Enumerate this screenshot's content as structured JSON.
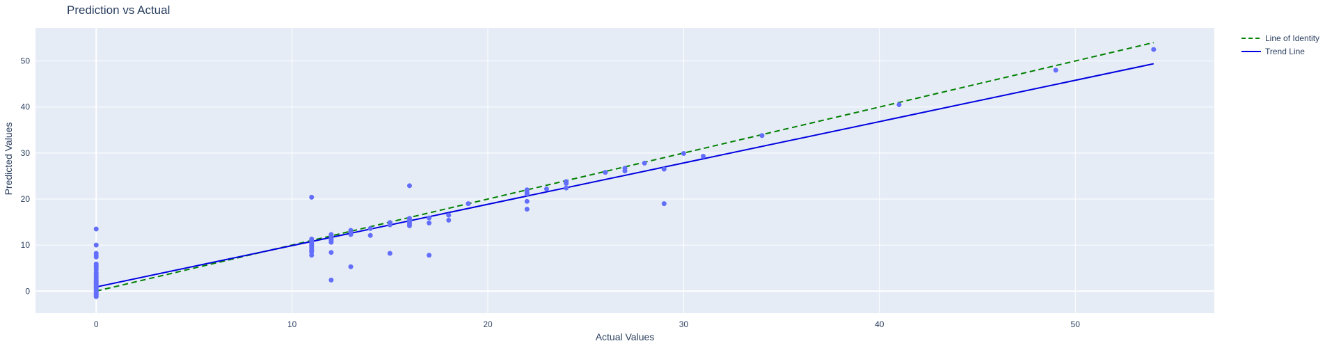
{
  "chart_data": {
    "type": "scatter",
    "title": "Prediction vs Actual",
    "xlabel": "Actual Values",
    "ylabel": "Predicted Values",
    "xlim": [
      -3.1,
      57.1
    ],
    "ylim": [
      -4.8,
      57.2
    ],
    "x_ticks": [
      0,
      10,
      20,
      30,
      40,
      50
    ],
    "y_ticks": [
      0,
      10,
      20,
      30,
      40,
      50
    ],
    "grid": true,
    "legend_position": "top-right",
    "colors": {
      "plot_bg": "#E5ECF6",
      "grid": "#ffffff",
      "points": "#636EFA",
      "identity": "#008000",
      "trend": "#0000E0"
    },
    "series": [
      {
        "kind": "markers",
        "x": [
          0,
          0,
          0,
          0,
          0,
          0,
          0,
          0,
          0,
          0,
          0,
          0,
          0,
          0,
          0,
          0,
          0,
          0,
          0,
          0,
          0,
          0,
          0,
          0,
          0,
          0,
          0,
          0,
          11,
          11,
          11,
          11,
          11,
          11,
          11,
          11,
          11,
          11,
          12,
          12,
          12,
          12,
          12,
          12,
          12,
          12,
          13,
          13,
          13,
          13,
          14,
          14,
          15,
          15,
          15,
          16,
          16,
          16,
          16,
          16,
          16,
          17,
          17,
          17,
          18,
          18,
          19,
          22,
          22,
          22,
          22,
          22,
          23,
          24,
          24,
          24,
          26,
          27,
          27,
          28,
          29,
          29,
          30,
          31,
          34,
          41,
          49,
          54
        ],
        "y": [
          13.5,
          10.0,
          8.2,
          7.7,
          7.4,
          5.9,
          5.5,
          5.1,
          4.6,
          4.0,
          3.6,
          3.1,
          2.7,
          2.3,
          1.9,
          1.6,
          1.3,
          1.0,
          0.7,
          0.4,
          0.1,
          -0.2,
          -0.5,
          -0.8,
          -1.0,
          -1.2,
          0.9,
          2.0,
          20.4,
          11.3,
          10.8,
          10.4,
          10.0,
          9.6,
          9.2,
          8.8,
          8.5,
          7.8,
          12.3,
          11.9,
          11.6,
          11.3,
          11.0,
          10.6,
          8.4,
          2.4,
          13.2,
          12.8,
          12.3,
          5.3,
          13.6,
          12.1,
          14.9,
          14.4,
          8.2,
          22.9,
          15.8,
          15.4,
          15.0,
          14.6,
          14.2,
          15.9,
          14.8,
          7.8,
          16.5,
          15.4,
          19.0,
          22.0,
          21.4,
          21.1,
          19.5,
          17.8,
          22.2,
          23.8,
          23.4,
          22.4,
          25.8,
          26.7,
          26.1,
          27.8,
          26.5,
          19.0,
          29.9,
          29.3,
          33.8,
          40.5,
          48.0,
          52.5
        ],
        "name": ""
      },
      {
        "kind": "line",
        "name": "Line of Identity",
        "dash": "dash",
        "x": [
          0,
          54
        ],
        "y": [
          0,
          54
        ]
      },
      {
        "kind": "line",
        "name": "Trend Line",
        "dash": "solid",
        "x": [
          0,
          54
        ],
        "y": [
          0.9,
          49.4
        ]
      }
    ]
  }
}
